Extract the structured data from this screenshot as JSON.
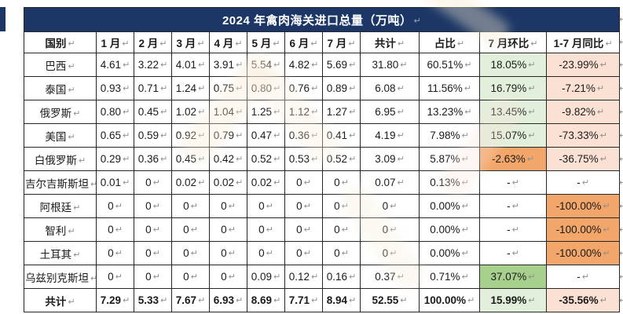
{
  "title": "2024 年禽肉海关进口总量（万吨）",
  "marks": {
    "line_break": "↵"
  },
  "colors": {
    "header_navy": "#1c3766",
    "positive_light_green": "#e2efda",
    "positive_medium_green": "#a6d08c",
    "negative_light_peach": "#fbe1d3",
    "negative_medium_orange": "#f2a669"
  },
  "columns": [
    "国别",
    "1 月",
    "2 月",
    "3 月",
    "4 月",
    "5 月",
    "6 月",
    "7 月",
    "共计",
    "占比",
    "7 月环比",
    "1-7 月同比"
  ],
  "rows": [
    {
      "country": "巴西",
      "values": [
        "4.61",
        "3.22",
        "4.01",
        "3.91",
        "5.54",
        "4.82",
        "5.69",
        "31.80",
        "60.51%"
      ],
      "mom": "18.05%",
      "mom_fill": "green_light",
      "yoy": "-23.99%",
      "yoy_fill": "peach_light"
    },
    {
      "country": "泰国",
      "values": [
        "0.93",
        "0.71",
        "1.24",
        "0.75",
        "0.80",
        "0.76",
        "0.89",
        "6.08",
        "11.56%"
      ],
      "mom": "16.79%",
      "mom_fill": "green_light",
      "yoy": "-7.21%",
      "yoy_fill": "peach_light"
    },
    {
      "country": "俄罗斯",
      "values": [
        "0.80",
        "0.45",
        "1.02",
        "1.04",
        "1.25",
        "1.12",
        "1.27",
        "6.95",
        "13.23%"
      ],
      "mom": "13.45%",
      "mom_fill": "green_light",
      "yoy": "-9.82%",
      "yoy_fill": "peach_light"
    },
    {
      "country": "美国",
      "values": [
        "0.65",
        "0.59",
        "0.92",
        "0.79",
        "0.47",
        "0.36",
        "0.41",
        "4.19",
        "7.98%"
      ],
      "mom": "15.07%",
      "mom_fill": "green_light",
      "yoy": "-73.33%",
      "yoy_fill": "peach_light"
    },
    {
      "country": "白俄罗斯",
      "values": [
        "0.29",
        "0.36",
        "0.45",
        "0.42",
        "0.52",
        "0.53",
        "0.52",
        "3.09",
        "5.87%"
      ],
      "mom": "-2.63%",
      "mom_fill": "orange_medium",
      "yoy": "-36.75%",
      "yoy_fill": "peach_light"
    },
    {
      "country": "吉尔吉斯斯坦",
      "values": [
        "0.01",
        "0",
        "0.02",
        "0.02",
        "0.02",
        "0",
        "0",
        "0.07",
        "0.13%"
      ],
      "mom": "-",
      "mom_fill": "none",
      "yoy": "-",
      "yoy_fill": "none"
    },
    {
      "country": "阿根廷",
      "values": [
        "0",
        "0",
        "0",
        "0",
        "0",
        "0",
        "0",
        "0",
        "0.00%"
      ],
      "mom": "-",
      "mom_fill": "none",
      "yoy": "-100.00%",
      "yoy_fill": "orange_medium"
    },
    {
      "country": "智利",
      "values": [
        "0",
        "0",
        "0",
        "0",
        "0",
        "0",
        "0",
        "0",
        "0.00%"
      ],
      "mom": "-",
      "mom_fill": "none",
      "yoy": "-100.00%",
      "yoy_fill": "orange_medium"
    },
    {
      "country": "土耳其",
      "values": [
        "0",
        "0",
        "0",
        "0",
        "0",
        "0",
        "0",
        "0",
        "0.00%"
      ],
      "mom": "-",
      "mom_fill": "none",
      "yoy": "-100.00%",
      "yoy_fill": "orange_medium"
    },
    {
      "country": "乌兹别克斯坦",
      "values": [
        "0",
        "0",
        "0",
        "0",
        "0.09",
        "0.12",
        "0.16",
        "0.37",
        "0.71%"
      ],
      "mom": "37.07%",
      "mom_fill": "green_medium",
      "yoy": "-",
      "yoy_fill": "none"
    },
    {
      "country": "共计",
      "values": [
        "7.29",
        "5.33",
        "7.67",
        "6.93",
        "8.69",
        "7.71",
        "8.94",
        "52.55",
        "100.00%"
      ],
      "mom": "15.99%",
      "mom_fill": "green_light",
      "yoy": "-35.56%",
      "yoy_fill": "peach_light",
      "bold": true
    }
  ]
}
